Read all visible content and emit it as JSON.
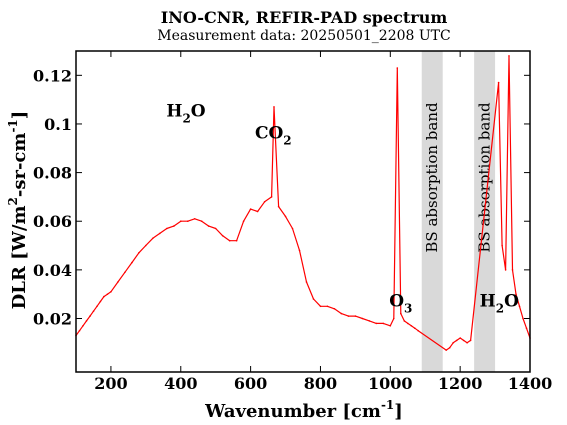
{
  "chart_data": {
    "type": "line",
    "title": "INO-CNR, REFIR-PAD spectrum",
    "subtitle": "Measurement data: 20250501_2208 UTC",
    "xlabel": {
      "main": "Wavenumber [cm",
      "sup": "-1",
      "end": "]"
    },
    "ylabel": {
      "a": "DLR [W/m",
      "sup1": "2",
      "b": "-sr-cm",
      "sup2": "-1",
      "c": "]"
    },
    "xlim": [
      100,
      1400
    ],
    "ylim": [
      -0.002,
      0.13
    ],
    "x_ticks": [
      200,
      400,
      600,
      800,
      1000,
      1200,
      1400
    ],
    "y_ticks": [
      0.02,
      0.04,
      0.06,
      0.08,
      0.1,
      0.12
    ],
    "y_tick_labels": [
      "0.02",
      "0.04",
      "0.06",
      "0.08",
      "0.1",
      "0.12"
    ],
    "line_color": "#ff0000",
    "band_color": "#d9d9d9",
    "bands": [
      {
        "x0": 1090,
        "x1": 1150,
        "label": "BS absorption band"
      },
      {
        "x0": 1240,
        "x1": 1300,
        "label": "BS absorption band"
      }
    ],
    "annotations": [
      {
        "main": "H",
        "sub": "2",
        "end": "O",
        "x": 415,
        "y": 0.103
      },
      {
        "main": "CO",
        "sub": "2",
        "end": "",
        "x": 665,
        "y": 0.094
      },
      {
        "main": "O",
        "sub": "3",
        "end": "",
        "x": 1030,
        "y": 0.025
      },
      {
        "main": "H",
        "sub": "2",
        "end": "O",
        "x": 1312,
        "y": 0.025
      }
    ],
    "series": [
      {
        "x": [
          100,
          110,
          120,
          130,
          140,
          150,
          160,
          170,
          180,
          190,
          200,
          220,
          240,
          260,
          280,
          300,
          320,
          340,
          360,
          380,
          400,
          420,
          440,
          460,
          480,
          500,
          520,
          540,
          560,
          580,
          600,
          620,
          640,
          660,
          667,
          680,
          700,
          720,
          740,
          760,
          780,
          800,
          820,
          840,
          860,
          880,
          900,
          920,
          940,
          960,
          980,
          1000,
          1010,
          1020,
          1030,
          1040,
          1050,
          1060,
          1070,
          1080,
          1160,
          1170,
          1180,
          1190,
          1200,
          1210,
          1220,
          1230,
          1310,
          1320,
          1330,
          1340,
          1350,
          1360,
          1370,
          1380,
          1390,
          1400
        ],
        "y": [
          0.013,
          0.015,
          0.017,
          0.019,
          0.021,
          0.023,
          0.025,
          0.027,
          0.029,
          0.03,
          0.031,
          0.035,
          0.039,
          0.043,
          0.047,
          0.05,
          0.053,
          0.055,
          0.057,
          0.058,
          0.06,
          0.06,
          0.061,
          0.06,
          0.058,
          0.057,
          0.054,
          0.052,
          0.052,
          0.06,
          0.065,
          0.064,
          0.068,
          0.07,
          0.107,
          0.066,
          0.062,
          0.057,
          0.048,
          0.035,
          0.028,
          0.025,
          0.025,
          0.024,
          0.022,
          0.021,
          0.021,
          0.02,
          0.019,
          0.018,
          0.018,
          0.017,
          0.02,
          0.123,
          0.022,
          0.019,
          0.018,
          0.017,
          0.016,
          0.015,
          0.007,
          0.008,
          0.01,
          0.011,
          0.012,
          0.011,
          0.01,
          0.011,
          0.117,
          0.05,
          0.04,
          0.128,
          0.04,
          0.03,
          0.025,
          0.02,
          0.016,
          0.012
        ]
      }
    ]
  }
}
